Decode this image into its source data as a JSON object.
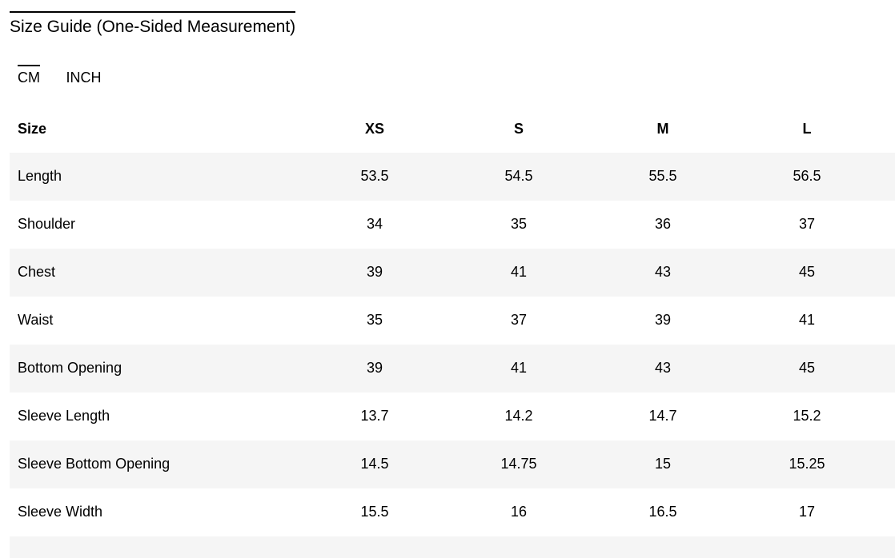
{
  "page": {
    "title": "Size Guide (One-Sided Measurement)"
  },
  "unit_tabs": {
    "options": [
      {
        "label": "CM",
        "selected": true
      },
      {
        "label": "INCH",
        "selected": false
      }
    ]
  },
  "table": {
    "header": [
      "Size",
      "XS",
      "S",
      "M",
      "L"
    ],
    "rows": [
      {
        "label": "Length",
        "values": [
          "53.5",
          "54.5",
          "55.5",
          "56.5"
        ]
      },
      {
        "label": "Shoulder",
        "values": [
          "34",
          "35",
          "36",
          "37"
        ]
      },
      {
        "label": "Chest",
        "values": [
          "39",
          "41",
          "43",
          "45"
        ]
      },
      {
        "label": "Waist",
        "values": [
          "35",
          "37",
          "39",
          "41"
        ]
      },
      {
        "label": "Bottom Opening",
        "values": [
          "39",
          "41",
          "43",
          "45"
        ]
      },
      {
        "label": "Sleeve Length",
        "values": [
          "13.7",
          "14.2",
          "14.7",
          "15.2"
        ]
      },
      {
        "label": "Sleeve Bottom Opening",
        "values": [
          "14.5",
          "14.75",
          "15",
          "15.25"
        ]
      },
      {
        "label": "Sleeve Width",
        "values": [
          "15.5",
          "16",
          "16.5",
          "17"
        ]
      }
    ]
  },
  "colors": {
    "text": "#000000",
    "accent_line": "#000000",
    "row_alt_bg": "#f5f5f5",
    "background": "#ffffff"
  }
}
